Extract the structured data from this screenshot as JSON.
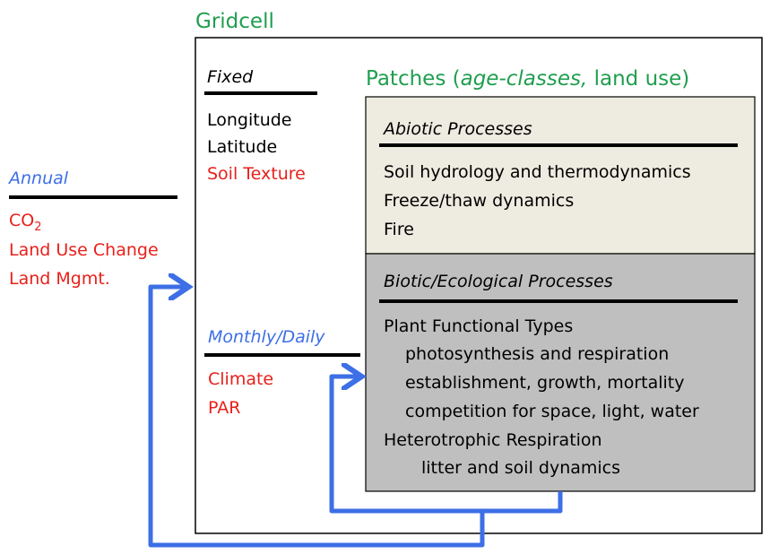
{
  "gridcell": {
    "title": "Gridcell"
  },
  "fixed": {
    "heading": "Fixed",
    "items": [
      "Longitude",
      "Latitude"
    ],
    "soil": "Soil Texture"
  },
  "patches": {
    "title_parts": [
      "Patches (",
      "age-classes,",
      " land use)"
    ]
  },
  "abiotic": {
    "heading": "Abiotic Processes",
    "items": [
      "Soil hydrology and thermodynamics",
      "Freeze/thaw dynamics",
      "Fire"
    ]
  },
  "biotic": {
    "heading": "Biotic/Ecological Processes",
    "pft": {
      "label": "Plant Functional Types",
      "items": [
        "photosynthesis and respiration",
        "establishment, growth, mortality",
        "competition for space, light, water"
      ]
    },
    "hetero": {
      "label": "Heterotrophic Respiration",
      "items": [
        "litter and soil dynamics"
      ]
    }
  },
  "annual": {
    "heading": "Annual",
    "co2": {
      "base": "CO",
      "sub": "2"
    },
    "items": [
      "Land Use Change",
      "Land Mgmt."
    ]
  },
  "monthly": {
    "heading": "Monthly/Daily",
    "items": [
      "Climate",
      "PAR"
    ]
  }
}
